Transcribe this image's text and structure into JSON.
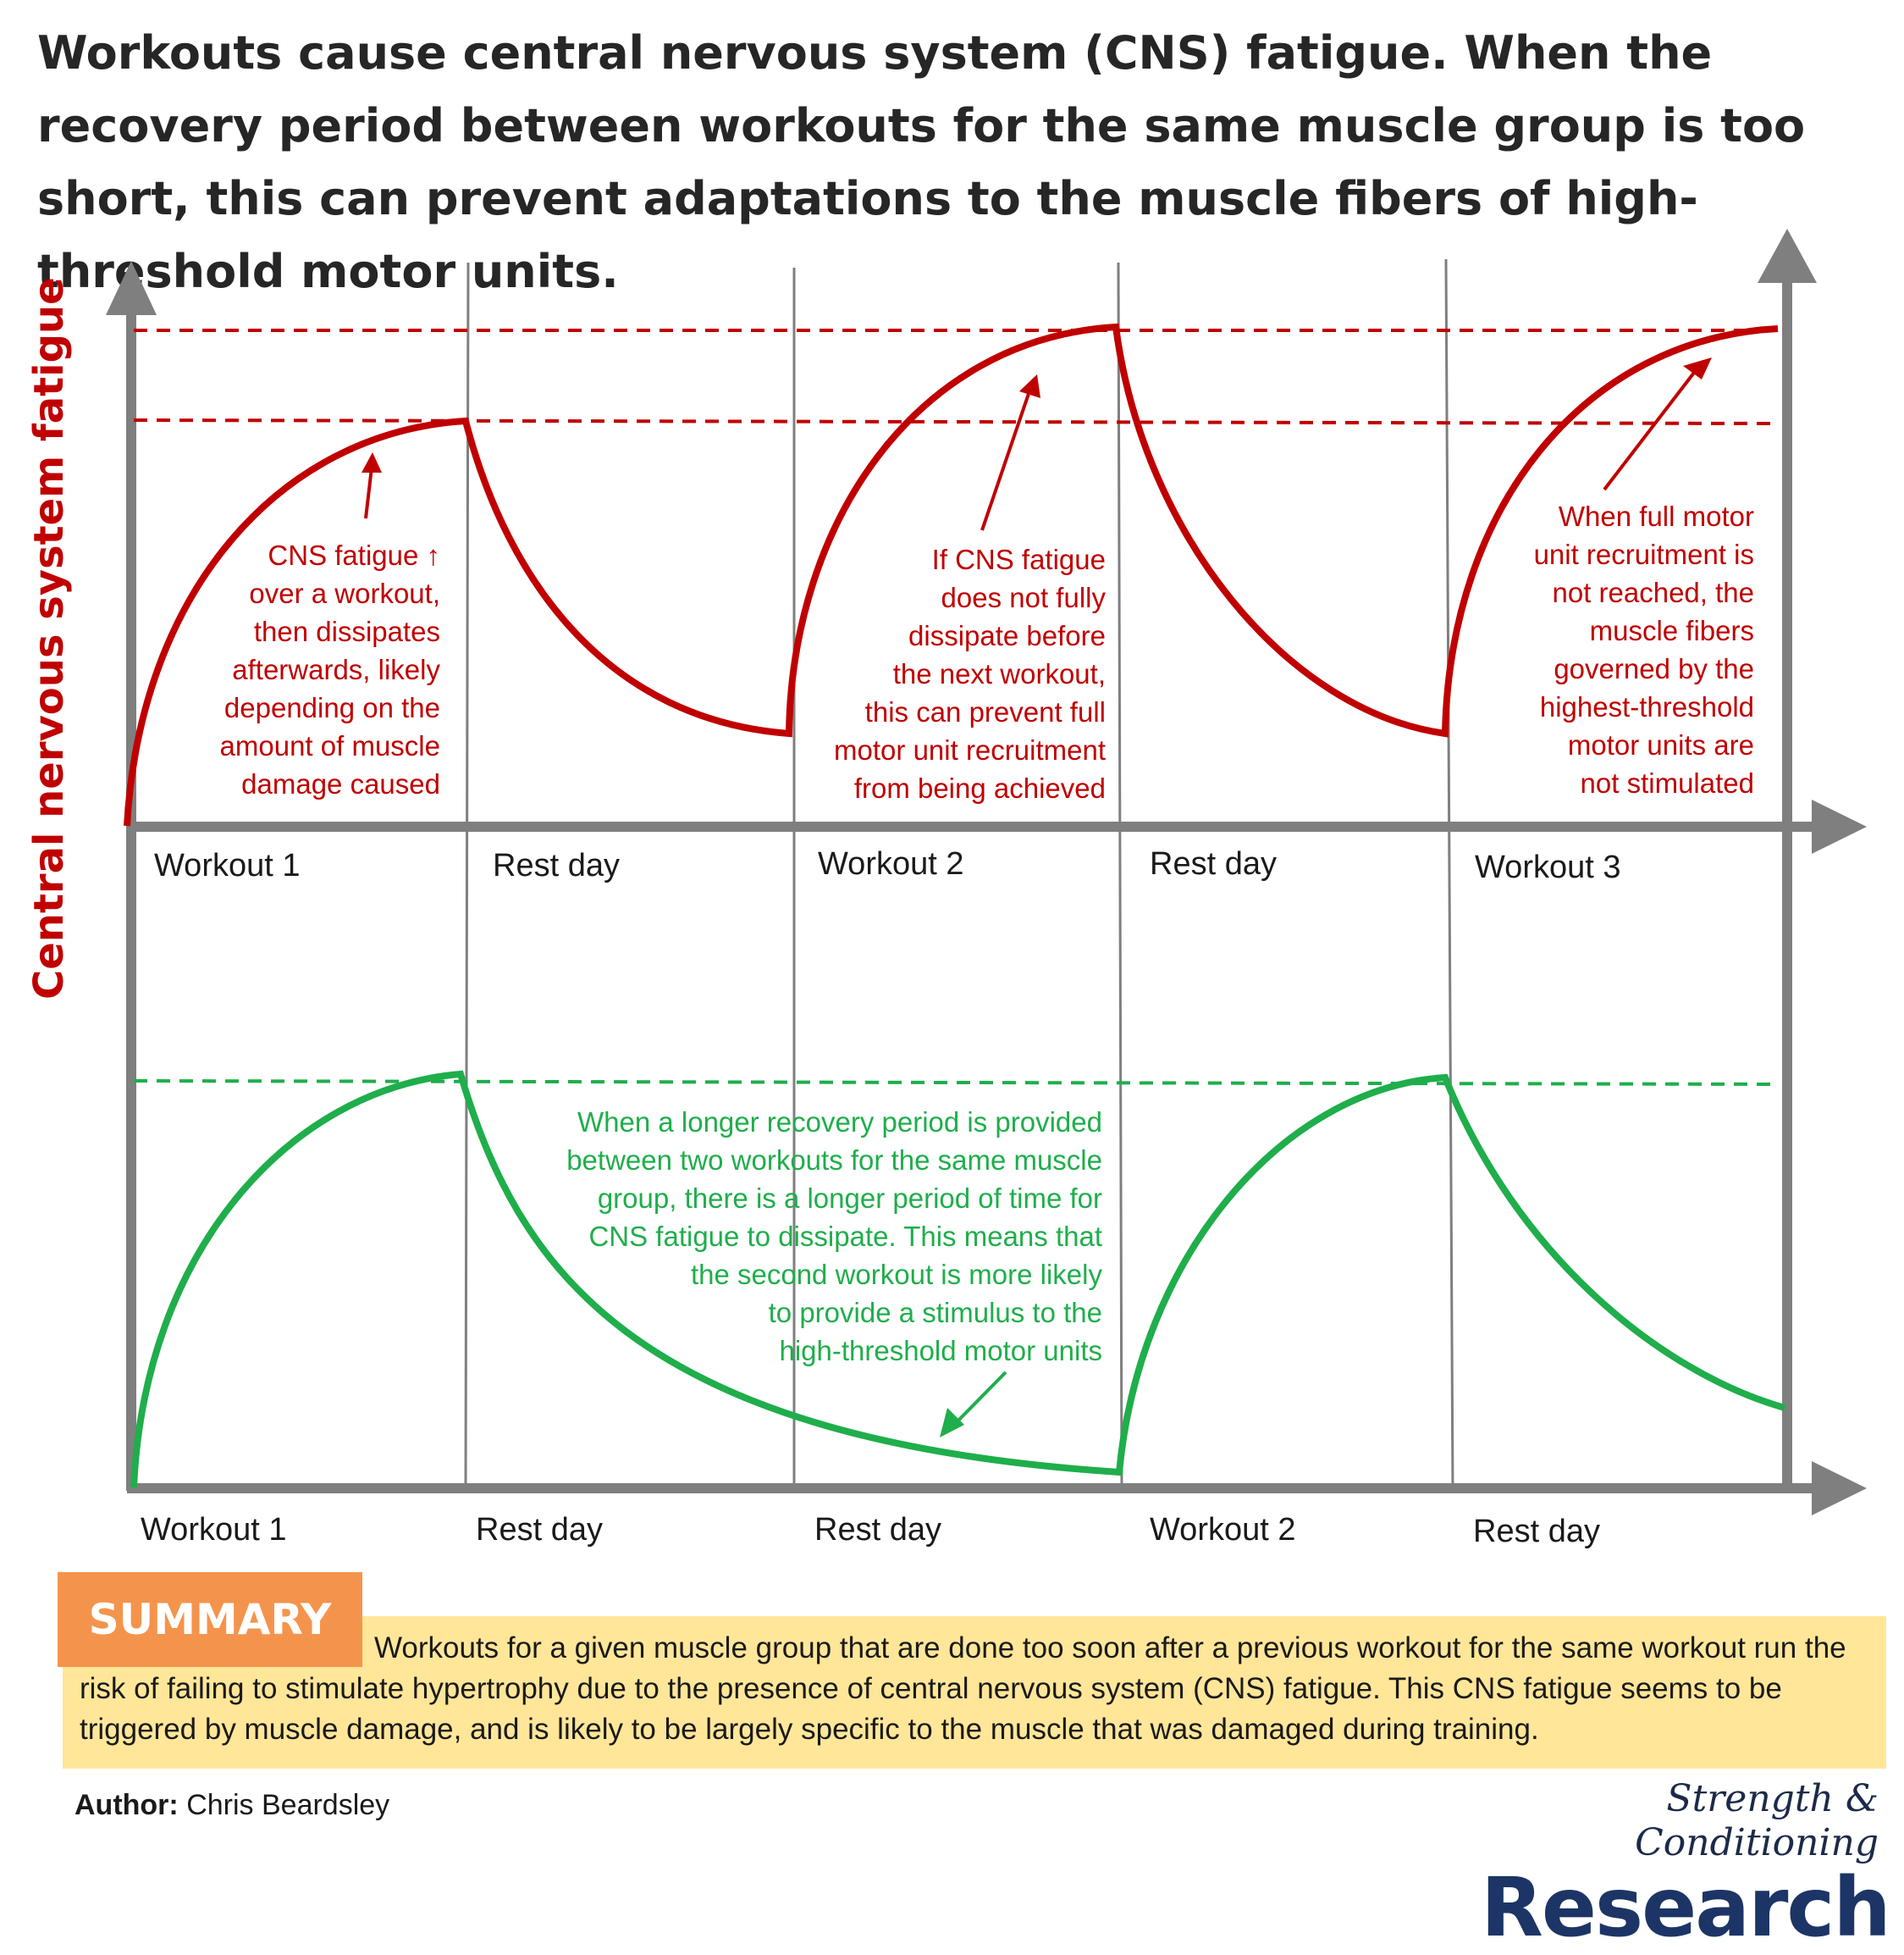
{
  "title": "Workouts cause central nervous system (CNS) fatigue. When the recovery period between workouts for the same muscle group is too short, this can prevent adaptations to the muscle fibers of high-threshold motor units.",
  "y_axis_label": "Central nervous system fatigue",
  "colors": {
    "short_recovery": "#c00000",
    "long_recovery": "#1fae4b",
    "axis": "#7f7f7f",
    "summary_bg": "#ffe699",
    "summary_tag": "#f4944c"
  },
  "top_panel": {
    "labels": [
      "Workout 1",
      "Rest day",
      "Workout 2",
      "Rest day",
      "Workout 3"
    ],
    "note_1": "CNS fatigue ↑\nover a workout,\nthen dissipates\nafterwards, likely\ndepending on the\namount of muscle\ndamage caused",
    "note_2": "If CNS  fatigue\ndoes not fully\ndissipate before\nthe next workout,\nthis can prevent full\nmotor unit recruitment\nfrom being achieved",
    "note_3": "When full motor\nunit recruitment is\nnot reached, the\nmuscle fibers\ngoverned by the\nhighest-threshold\nmotor units are\nnot stimulated"
  },
  "bottom_panel": {
    "labels": [
      "Workout 1",
      "Rest day",
      "Rest day",
      "Workout 2",
      "Rest day"
    ],
    "note": "When a longer recovery period is provided\nbetween two workouts for the same muscle\ngroup, there is a longer period of time for\nCNS fatigue to dissipate. This means that\nthe second workout is more likely\nto provide a stimulus to the\nhigh-threshold motor units"
  },
  "summary": {
    "tag": "SUMMARY",
    "text": "Workouts for a given muscle group that are done too soon after a previous workout for the same workout run the risk of failing to stimulate hypertrophy due to the presence of central nervous system (CNS) fatigue. This CNS fatigue seems to be triggered by muscle damage, and is likely to be largely specific to the muscle that was damaged during training."
  },
  "author": {
    "label": "Author:",
    "name": "Chris Beardsley"
  },
  "logo": {
    "script": "Strength & Conditioning",
    "word": "Research"
  }
}
